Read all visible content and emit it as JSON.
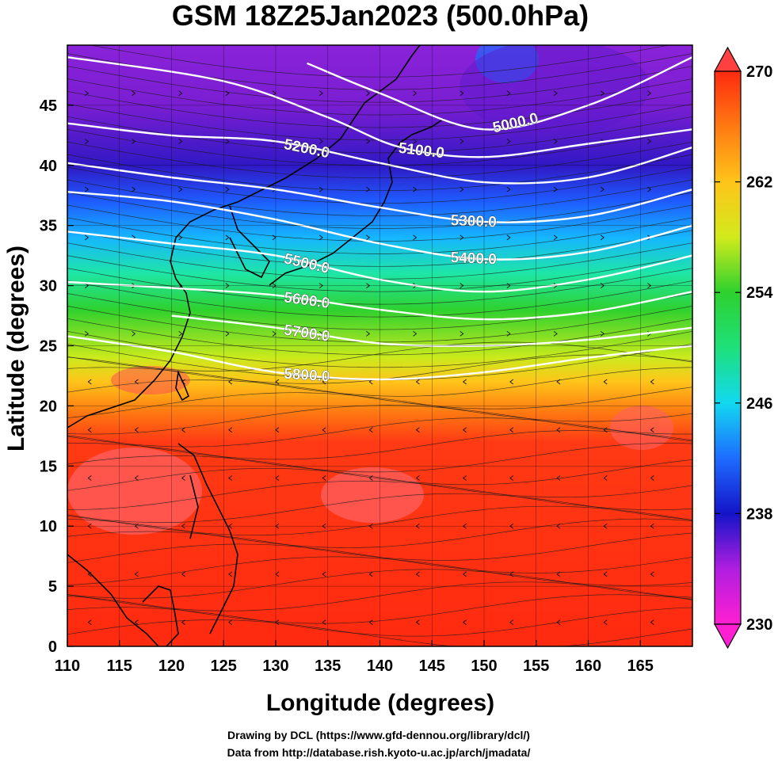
{
  "title": "GSM 18Z25Jan2023 (500.0hPa)",
  "xlabel": "Longitude (degrees)",
  "ylabel": "Latitude  (degrees)",
  "credits": [
    "Drawing by DCL (https://www.gfd-dennou.org/library/dcl/)",
    "Data from http://database.rish.kyoto-u.ac.jp/arch/jmadata/"
  ],
  "map": {
    "lon_range": [
      110,
      170
    ],
    "lat_range": [
      0,
      50
    ],
    "lon_ticks": [
      "110",
      "115",
      "120",
      "125",
      "130",
      "135",
      "140",
      "145",
      "150",
      "155",
      "160",
      "165"
    ],
    "lat_ticks": [
      "0",
      "5",
      "10",
      "15",
      "20",
      "25",
      "30",
      "35",
      "40",
      "45"
    ],
    "grid": true
  },
  "colorbar": {
    "min": 230,
    "max": 270,
    "tick_labels": [
      "230",
      "238",
      "246",
      "254",
      "262",
      "270"
    ],
    "colors": [
      "#ff1fd2",
      "#8a22d8",
      "#1414c8",
      "#1e6cff",
      "#12d8f0",
      "#1ee07a",
      "#2ed12e",
      "#d2ea1c",
      "#ffc41a",
      "#ff7a12",
      "#ff2a10",
      "#ff2a10"
    ]
  },
  "contours": [
    {
      "label": "5000.0",
      "lat_at": [
        [
          133,
          48.5
        ],
        [
          140,
          46
        ],
        [
          150,
          43
        ],
        [
          160,
          45
        ],
        [
          170,
          49
        ]
      ]
    },
    {
      "label": "5100.0",
      "lat_at": [
        [
          110,
          49
        ],
        [
          125,
          47
        ],
        [
          135,
          44
        ],
        [
          142,
          41.5
        ],
        [
          150,
          40.7
        ],
        [
          160,
          41.8
        ],
        [
          170,
          43
        ]
      ]
    },
    {
      "label": "5200.0",
      "lat_at": [
        [
          110,
          43.5
        ],
        [
          120,
          42.5
        ],
        [
          130,
          42
        ],
        [
          140,
          40.2
        ],
        [
          150,
          38.6
        ],
        [
          160,
          39
        ],
        [
          170,
          41.5
        ]
      ]
    },
    {
      "label": "5300.0",
      "lat_at": [
        [
          110,
          40.2
        ],
        [
          120,
          39
        ],
        [
          130,
          38
        ],
        [
          140,
          36.5
        ],
        [
          150,
          35.3
        ],
        [
          160,
          35.8
        ],
        [
          170,
          38
        ]
      ]
    },
    {
      "label": "5400.0",
      "lat_at": [
        [
          110,
          37.8
        ],
        [
          120,
          37
        ],
        [
          130,
          35.5
        ],
        [
          140,
          33.5
        ],
        [
          150,
          32.2
        ],
        [
          160,
          32.8
        ],
        [
          170,
          35
        ]
      ]
    },
    {
      "label": "5500.0",
      "lat_at": [
        [
          110,
          34.5
        ],
        [
          120,
          33.5
        ],
        [
          130,
          32.5
        ],
        [
          140,
          30.5
        ],
        [
          150,
          29.5
        ],
        [
          160,
          30.5
        ],
        [
          170,
          32.5
        ]
      ]
    },
    {
      "label": "5600.0",
      "lat_at": [
        [
          110,
          30.3
        ],
        [
          120,
          29.8
        ],
        [
          130,
          29.2
        ],
        [
          140,
          28
        ],
        [
          150,
          27.2
        ],
        [
          160,
          27.8
        ],
        [
          170,
          29.5
        ]
      ]
    },
    {
      "label": "5700.0",
      "lat_at": [
        [
          120,
          27.5
        ],
        [
          130,
          26.5
        ],
        [
          140,
          25.2
        ],
        [
          150,
          25
        ],
        [
          160,
          25.5
        ],
        [
          170,
          26.5
        ]
      ]
    },
    {
      "label": "5800.0",
      "lat_at": [
        [
          110,
          25.8
        ],
        [
          120,
          24.5
        ],
        [
          130,
          22.8
        ],
        [
          140,
          22.2
        ],
        [
          150,
          22.8
        ],
        [
          160,
          24
        ],
        [
          170,
          25
        ]
      ]
    }
  ]
}
